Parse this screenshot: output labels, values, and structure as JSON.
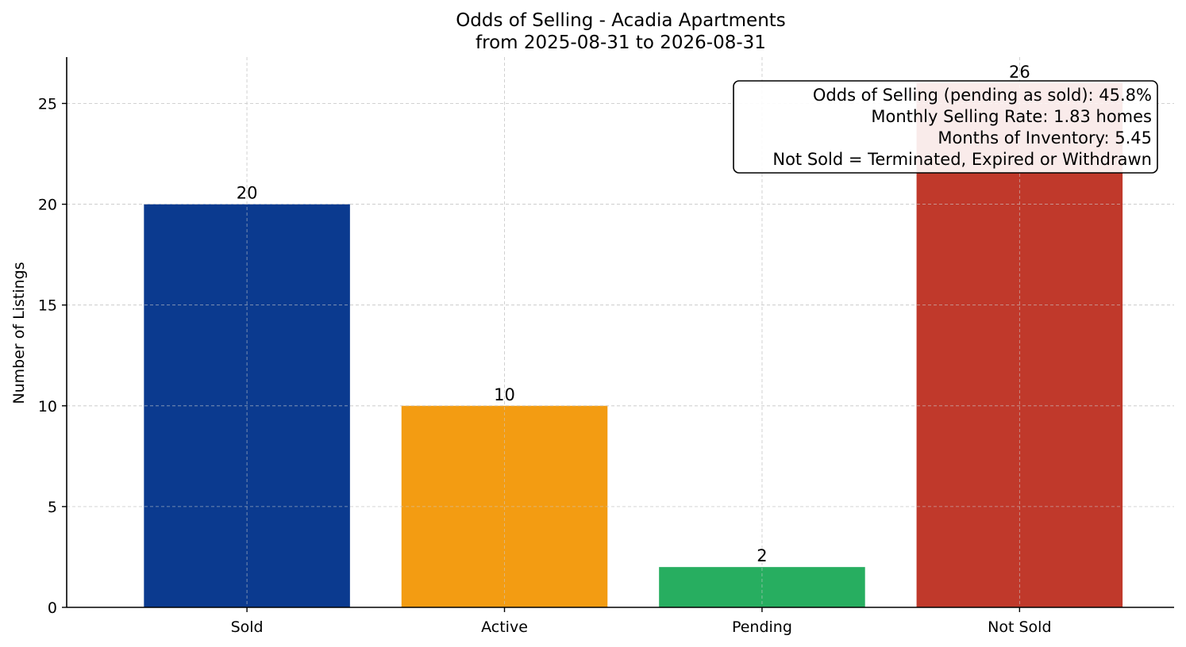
{
  "chart_data": {
    "type": "bar",
    "title": "Odds of Selling - Acadia Apartments",
    "subtitle": "from 2025-08-31 to 2026-08-31",
    "xlabel": "",
    "ylabel": "Number of Listings",
    "categories": [
      "Sold",
      "Active",
      "Pending",
      "Not Sold"
    ],
    "values": [
      20,
      10,
      2,
      26
    ],
    "colors": [
      "#0b3a8f",
      "#f39c12",
      "#27ae60",
      "#c0392b"
    ],
    "ylim": [
      0,
      27.3
    ],
    "yticks": [
      0,
      5,
      10,
      15,
      20,
      25
    ],
    "grid": true,
    "info_box": {
      "placement": "top-right",
      "lines": [
        "Odds of Selling (pending as sold): 45.8%",
        "Monthly Selling Rate: 1.83 homes",
        "Months of Inventory: 5.45",
        "Not Sold = Terminated, Expired or Withdrawn"
      ]
    }
  }
}
